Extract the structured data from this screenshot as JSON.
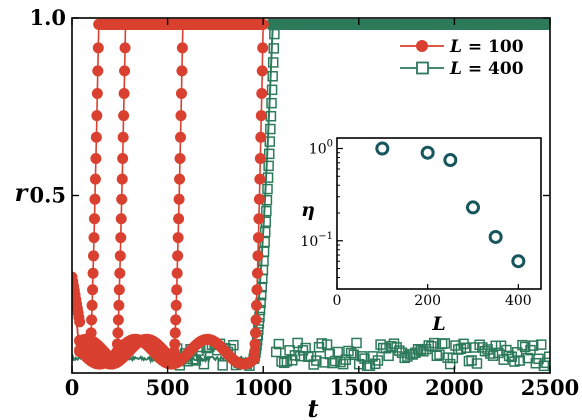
{
  "colors": {
    "red": "#d9402f",
    "green": "#2c7a5a",
    "inset_marker": "#17565f"
  },
  "chart_data": [
    {
      "type": "line",
      "xlabel": "t",
      "ylabel": "r",
      "xlim": [
        0,
        2500
      ],
      "ylim": [
        0,
        1.0
      ],
      "xticks": [
        0,
        500,
        1000,
        1500,
        2000,
        2500
      ],
      "xtick_labels": [
        "0",
        "500",
        "1000",
        "1500",
        "2000",
        "2500"
      ],
      "yticks": [
        0.5,
        1.0
      ],
      "ytick_labels": [
        "0.5",
        "1.0"
      ],
      "legend_position": "top-right",
      "series": [
        {
          "name": "L = 100",
          "label_var": "L",
          "label_eq": "= 100",
          "color": "#d9402f",
          "marker": "filled-circle",
          "transitions": [
            140,
            280,
            580,
            1000
          ],
          "ramp_width": 45,
          "pre_level": 0.06,
          "initial_level": 0.27,
          "sync_level": 0.982
        },
        {
          "name": "L = 400",
          "label_var": "L",
          "label_eq": "= 400",
          "color": "#2c7a5a",
          "marker": "open-square",
          "transition": 1050,
          "ramp_width": 110,
          "pre_level": 0.04,
          "post_level": 0.982,
          "fluct_range": [
            0.02,
            0.085
          ]
        }
      ]
    },
    {
      "type": "scatter",
      "xlabel": "L",
      "ylabel": "η",
      "x": [
        100,
        200,
        250,
        300,
        350,
        400
      ],
      "y": [
        1.0,
        0.9,
        0.75,
        0.23,
        0.11,
        0.06
      ],
      "xlim": [
        0,
        450
      ],
      "ylim": [
        0.03,
        1.3
      ],
      "yscale": "log",
      "xticks": [
        0,
        200,
        400
      ],
      "xtick_labels": [
        "0",
        "200",
        "400"
      ],
      "yticks": [
        1,
        0.1
      ],
      "ytick_labels": [
        {
          "base": "10",
          "exp": "0"
        },
        {
          "base": "10",
          "exp": "−1"
        }
      ],
      "marker": "open-circle"
    }
  ]
}
